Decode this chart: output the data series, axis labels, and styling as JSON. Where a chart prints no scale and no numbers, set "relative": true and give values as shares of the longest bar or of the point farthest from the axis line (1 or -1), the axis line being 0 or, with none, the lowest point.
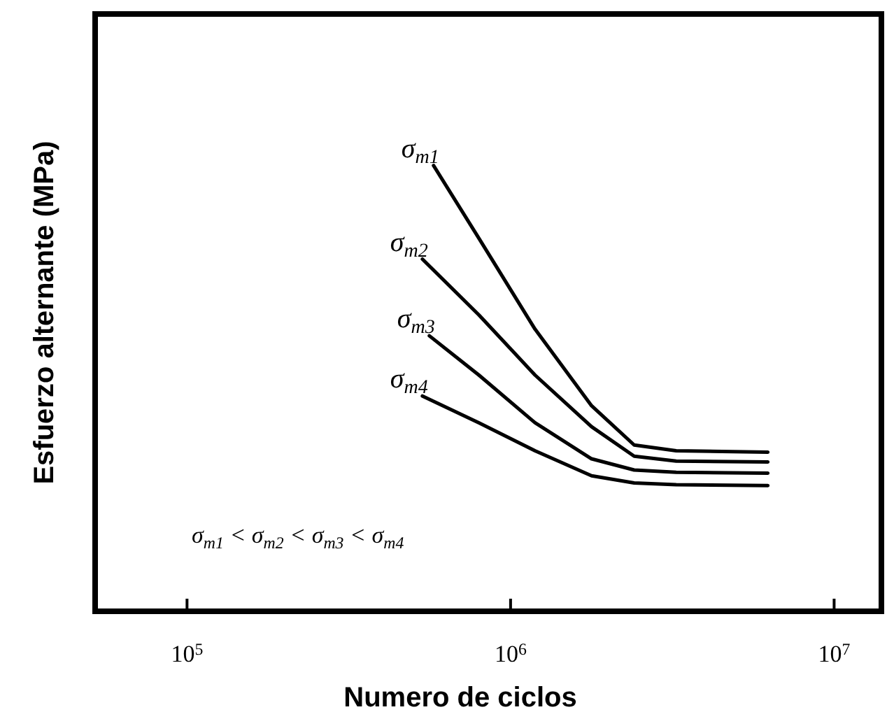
{
  "chart_data": {
    "type": "line",
    "xlabel": "Numero de ciclos",
    "ylabel": "Esfuerzo alternante (MPa)",
    "log": "x",
    "relative": true,
    "grid": false,
    "marker": "none",
    "line_style": "solid",
    "xlim": [
      52000,
      14000000
    ],
    "xticks": [
      {
        "value": 100000,
        "label": "10$^{5}$"
      },
      {
        "value": 1000000,
        "label": "10$^{6}$"
      },
      {
        "value": 10000000,
        "label": "10$^{7}$"
      }
    ],
    "series": [
      {
        "name": "σ$_{m1}$",
        "color": "#000000",
        "x": [
          578000,
          798000,
          1190000,
          1780000,
          2410000,
          3250000,
          6240000
        ],
        "values": [
          1,
          0.837,
          0.633,
          0.461,
          0.373,
          0.36,
          0.357
        ]
      },
      {
        "name": "σ$_{m2}$",
        "color": "#000000",
        "x": [
          534000,
          798000,
          1190000,
          1780000,
          2410000,
          3250000,
          6240000
        ],
        "values": [
          0.79,
          0.665,
          0.53,
          0.414,
          0.348,
          0.337,
          0.335
        ]
      },
      {
        "name": "σ$_{m3}$",
        "color": "#000000",
        "x": [
          561000,
          798000,
          1190000,
          1780000,
          2410000,
          3250000,
          6240000
        ],
        "values": [
          0.618,
          0.53,
          0.423,
          0.342,
          0.317,
          0.312,
          0.31
        ]
      },
      {
        "name": "σ$_{m4}$",
        "color": "#000000",
        "x": [
          534000,
          798000,
          1190000,
          1780000,
          2410000,
          3250000,
          6240000
        ],
        "values": [
          0.483,
          0.423,
          0.36,
          0.304,
          0.288,
          0.284,
          0.282
        ]
      }
    ],
    "annotations": [
      "σ$_{m1}$ < σ$_{m2}$ < σ$_{m3}$ < σ$_{m4}$"
    ]
  }
}
